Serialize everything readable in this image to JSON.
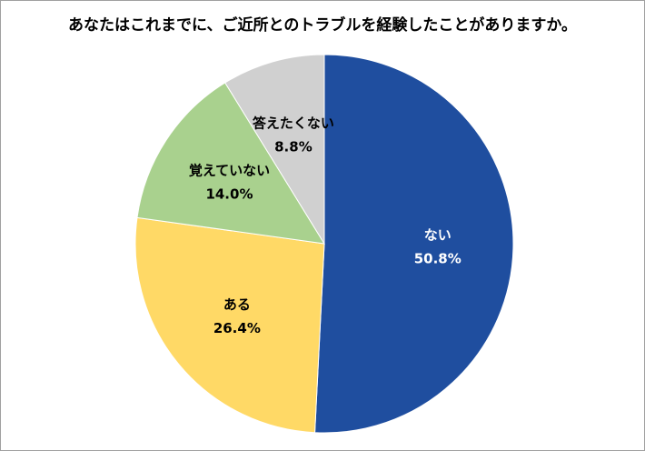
{
  "chart_data": {
    "type": "pie",
    "title": "あなたはこれまでに、ご近所とのトラブルを経験したことがありますか。",
    "categories": [
      "ない",
      "ある",
      "覚えていない",
      "答えたくない"
    ],
    "values": [
      50.8,
      26.4,
      14.0,
      8.8
    ],
    "value_labels": [
      "50.8%",
      "26.4%",
      "14.0%",
      "8.8%"
    ],
    "colors": [
      "#1f4e9f",
      "#ffd966",
      "#a9d18e",
      "#d0d0d0"
    ],
    "label_colors": [
      "#ffffff",
      "#000000",
      "#000000",
      "#000000"
    ]
  }
}
